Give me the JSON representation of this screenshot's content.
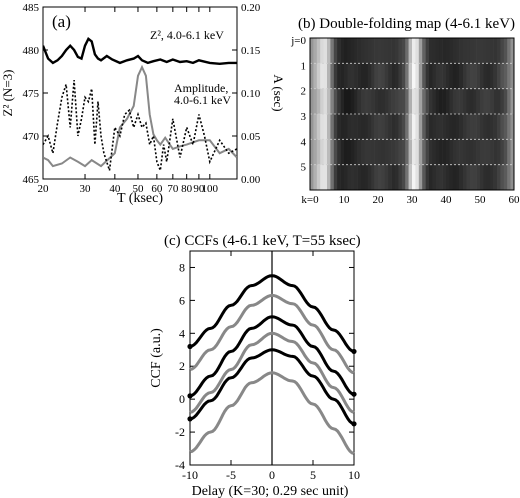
{
  "panel_a": {
    "label": "(a)",
    "ylabel_left": "Z² (N=3)",
    "ylabel_right": "A (sec)",
    "xlabel": "T (ksec)",
    "annot_z2": "Z², 4.0-6.1 keV",
    "annot_amp_1": "Amplitude,",
    "annot_amp_2": "4.0-6.1 keV"
  },
  "panel_b": {
    "title": "(b) Double-folding map (4-6.1 keV)",
    "j_labels": [
      "j=0",
      "1",
      "2",
      "3",
      "4",
      "5"
    ],
    "k_labels": [
      "k=0",
      "10",
      "20",
      "30",
      "40",
      "50",
      "60"
    ]
  },
  "panel_c": {
    "title": "(c) CCFs (4-6.1 keV, T=55 ksec)",
    "ylabel": "CCF (a.u.)",
    "xlabel": "Delay (K=30; 0.29 sec unit)"
  },
  "chart_data": [
    {
      "type": "line",
      "title": "(a)",
      "xlabel": "T (ksec)",
      "ylabel": "Z² (N=3)",
      "y2label": "A (sec)",
      "xscale": "log",
      "xlim": [
        20,
        130
      ],
      "ylim": [
        465,
        485
      ],
      "y2lim": [
        0,
        0.2
      ],
      "xticks": [
        20,
        30,
        40,
        50,
        60,
        70,
        80,
        90,
        100
      ],
      "yticks": [
        465,
        470,
        475,
        480,
        485
      ],
      "y2ticks": [
        0.0,
        0.05,
        0.1,
        0.15,
        0.2
      ],
      "series": [
        {
          "name": "Z², 4.0-6.1 keV",
          "axis": "left",
          "color": "#000000",
          "style": "solid-thick",
          "x": [
            20,
            21,
            22,
            23,
            24,
            25,
            26,
            27,
            28,
            29,
            30,
            31,
            32,
            33,
            34,
            35,
            37,
            39,
            42,
            45,
            48,
            50,
            52,
            55,
            58,
            62,
            66,
            70,
            75,
            80,
            85,
            90,
            100,
            110,
            120,
            130
          ],
          "y": [
            480.5,
            479.0,
            478.5,
            478.8,
            479.3,
            480.0,
            480.5,
            480.0,
            479.2,
            479.0,
            480.5,
            481.3,
            481.0,
            479.5,
            479.0,
            478.8,
            479.3,
            478.9,
            478.5,
            478.8,
            479.0,
            479.3,
            478.8,
            478.5,
            478.7,
            478.9,
            478.6,
            478.9,
            478.6,
            478.7,
            478.5,
            478.8,
            478.5,
            478.4,
            478.5,
            478.5
          ]
        },
        {
          "name": "Amplitude, 4.0-6.1 keV",
          "axis": "right",
          "color": "#888888",
          "style": "solid",
          "x": [
            20,
            21,
            22,
            24,
            26,
            28,
            30,
            32,
            35,
            40,
            42,
            45,
            48,
            50,
            52,
            54,
            56,
            58,
            60,
            62,
            65,
            70,
            75,
            80,
            90,
            100,
            110,
            120,
            130
          ],
          "y": [
            0.025,
            0.022,
            0.015,
            0.018,
            0.025,
            0.02,
            0.015,
            0.022,
            0.015,
            0.03,
            0.06,
            0.07,
            0.085,
            0.12,
            0.13,
            0.12,
            0.075,
            0.052,
            0.045,
            0.04,
            0.048,
            0.035,
            0.038,
            0.04,
            0.045,
            0.045,
            0.03,
            0.035,
            0.025
          ]
        },
        {
          "name": "",
          "axis": "right",
          "color": "#000000",
          "style": "dotted",
          "x": [
            20,
            21,
            22,
            23,
            24,
            25,
            26,
            27,
            28,
            29,
            30,
            31,
            32,
            33,
            34,
            35,
            36,
            38,
            40,
            42,
            44,
            46,
            48,
            50,
            52,
            54,
            56,
            58,
            60,
            62,
            64,
            66,
            68,
            70,
            75,
            80,
            85,
            90,
            95,
            100,
            110,
            120,
            130
          ],
          "y": [
            0.04,
            0.05,
            0.03,
            0.065,
            0.095,
            0.11,
            0.06,
            0.115,
            0.05,
            0.07,
            0.095,
            0.09,
            0.105,
            0.04,
            0.09,
            0.05,
            0.03,
            0.01,
            0.06,
            0.05,
            0.075,
            0.08,
            0.06,
            0.075,
            0.06,
            0.065,
            0.04,
            0.05,
            0.02,
            0.01,
            0.04,
            0.02,
            0.045,
            0.07,
            0.025,
            0.06,
            0.04,
            0.075,
            0.05,
            0.02,
            0.045,
            0.03,
            0.035
          ]
        }
      ]
    },
    {
      "type": "heatmap",
      "title": "(b) Double-folding map (4-6.1 keV)",
      "xlabel": "k",
      "ylabel": "j",
      "xlim": [
        0,
        60
      ],
      "j": [
        0,
        1,
        2,
        3,
        4,
        5
      ],
      "k_profile": {
        "k": [
          0,
          2,
          4,
          5,
          6,
          7,
          8,
          10,
          15,
          20,
          25,
          28,
          29,
          30,
          31,
          32,
          33,
          35,
          40,
          45,
          50,
          55,
          58,
          59,
          60
        ],
        "brightness": [
          0.55,
          0.7,
          0.9,
          0.85,
          0.6,
          0.35,
          0.2,
          0.12,
          0.18,
          0.22,
          0.2,
          0.3,
          0.55,
          0.9,
          0.95,
          0.8,
          0.45,
          0.18,
          0.15,
          0.2,
          0.22,
          0.2,
          0.35,
          0.55,
          0.6
        ]
      },
      "row_offsets": [
        0,
        0.05,
        -0.04,
        0.03,
        -0.02,
        0.04
      ]
    },
    {
      "type": "line",
      "title": "(c) CCFs (4-6.1 keV, T=55 ksec)",
      "xlabel": "Delay (K=30; 0.29 sec unit)",
      "ylabel": "CCF (a.u.)",
      "xlim": [
        -10,
        10
      ],
      "ylim": [
        -4,
        9
      ],
      "xticks": [
        -10,
        -5,
        0,
        5,
        10
      ],
      "yticks": [
        -4,
        -2,
        0,
        2,
        4,
        6,
        8
      ],
      "series": [
        {
          "color": "#000000",
          "x": [
            -10,
            -7.5,
            -5,
            -2.5,
            0,
            2.5,
            5,
            7.5,
            10
          ],
          "y": [
            3.2,
            4.3,
            5.7,
            6.9,
            7.5,
            6.9,
            5.6,
            4.2,
            2.9
          ]
        },
        {
          "color": "#888888",
          "x": [
            -10,
            -7.5,
            -5,
            -2.5,
            0,
            2.5,
            5,
            7.5,
            10
          ],
          "y": [
            1.8,
            3.0,
            4.4,
            5.7,
            6.3,
            5.8,
            4.5,
            3.0,
            1.6
          ]
        },
        {
          "color": "#000000",
          "x": [
            -10,
            -7.5,
            -5,
            -2.5,
            0,
            2.5,
            5,
            7.5,
            10
          ],
          "y": [
            0.2,
            1.4,
            2.9,
            4.3,
            5.0,
            4.5,
            3.2,
            1.7,
            0.3
          ]
        },
        {
          "color": "#888888",
          "x": [
            -10,
            -7.5,
            -5,
            -2.5,
            0,
            2.5,
            5,
            7.5,
            10
          ],
          "y": [
            -0.8,
            0.4,
            1.8,
            3.3,
            4.0,
            3.5,
            2.2,
            0.7,
            -0.8
          ]
        },
        {
          "color": "#000000",
          "x": [
            -10,
            -7.5,
            -5,
            -2.5,
            0,
            2.5,
            5,
            7.5,
            10
          ],
          "y": [
            -1.2,
            -0.1,
            1.3,
            2.5,
            3.0,
            2.6,
            1.4,
            0.0,
            -1.5
          ]
        },
        {
          "color": "#888888",
          "x": [
            -10,
            -7.5,
            -5,
            -2.5,
            0,
            2.5,
            5,
            7.5,
            10
          ],
          "y": [
            -3.2,
            -2.0,
            -0.4,
            1.0,
            1.6,
            1.1,
            -0.3,
            -1.8,
            -3.3
          ]
        }
      ]
    }
  ]
}
